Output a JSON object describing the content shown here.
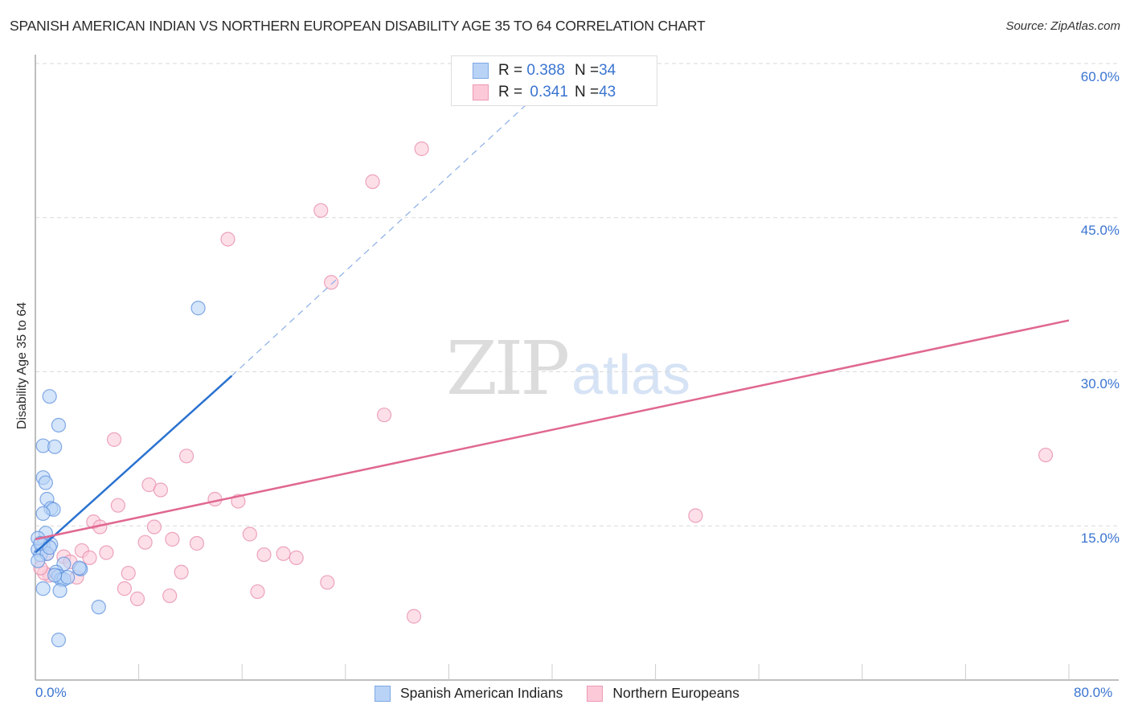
{
  "header": {
    "title": "SPANISH AMERICAN INDIAN VS NORTHERN EUROPEAN DISABILITY AGE 35 TO 64 CORRELATION CHART",
    "source": "Source: ZipAtlas.com"
  },
  "watermark": {
    "zip": "ZIP",
    "atlas": "atlas"
  },
  "axes": {
    "ylabel": "Disability Age 35 to 64",
    "y_ticks": [
      "60.0%",
      "45.0%",
      "30.0%",
      "15.0%"
    ],
    "x_ticks": [
      "0.0%",
      "80.0%"
    ]
  },
  "legend_stats": {
    "rows": [
      {
        "r_label": "R = ",
        "r_value": "0.388",
        "n_label": "N = ",
        "n_value": "34"
      },
      {
        "r_label": "R = ",
        "r_value": "0.341",
        "n_label": "N = ",
        "n_value": "43"
      }
    ]
  },
  "bottom_legend": {
    "items": [
      {
        "label": "Spanish American Indians"
      },
      {
        "label": "Northern Europeans"
      }
    ]
  },
  "colors": {
    "blue_fill": "#b9d3f6",
    "blue_stroke": "#5b8fdc",
    "blue_line": "#2a72d0",
    "pink_fill": "#fcc9d8",
    "pink_stroke": "#e58aa8",
    "pink_line": "#e06890",
    "tick_text": "#3a74d0",
    "grid": "#d9d9d9"
  },
  "chart_data": {
    "type": "scatter",
    "title": "SPANISH AMERICAN INDIAN VS NORTHERN EUROPEAN DISABILITY AGE 35 TO 64 CORRELATION CHART",
    "xlabel": "",
    "ylabel": "Disability Age 35 to 64",
    "xlim": [
      0,
      80
    ],
    "ylim": [
      0,
      62
    ],
    "x_tick_labels": [
      "0.0%",
      "80.0%"
    ],
    "y_tick_labels": [
      "15.0%",
      "30.0%",
      "45.0%",
      "60.0%"
    ],
    "grid": {
      "horizontal": true,
      "style": "dashed"
    },
    "legend_position": "bottom-center",
    "series": [
      {
        "name": "Spanish American Indians",
        "R": 0.388,
        "N": 34,
        "points": [
          [
            1.1,
            27.6
          ],
          [
            1.8,
            24.8
          ],
          [
            0.6,
            22.8
          ],
          [
            1.5,
            22.7
          ],
          [
            0.6,
            19.7
          ],
          [
            0.8,
            19.2
          ],
          [
            0.9,
            17.6
          ],
          [
            1.2,
            16.7
          ],
          [
            1.4,
            16.6
          ],
          [
            0.6,
            16.2
          ],
          [
            0.8,
            14.3
          ],
          [
            1.2,
            13.2
          ],
          [
            0.6,
            13.1
          ],
          [
            0.2,
            12.7
          ],
          [
            0.4,
            12.2
          ],
          [
            0.9,
            12.3
          ],
          [
            0.2,
            11.6
          ],
          [
            2.2,
            11.3
          ],
          [
            1.6,
            10.5
          ],
          [
            1.8,
            10.1
          ],
          [
            2.0,
            9.8
          ],
          [
            2.2,
            9.8
          ],
          [
            3.5,
            10.8
          ],
          [
            3.4,
            10.9
          ],
          [
            0.6,
            8.9
          ],
          [
            1.9,
            8.7
          ],
          [
            4.9,
            7.1
          ],
          [
            1.8,
            3.9
          ],
          [
            12.6,
            36.2
          ],
          [
            0.2,
            13.8
          ],
          [
            0.4,
            13.3
          ],
          [
            1.1,
            12.9
          ],
          [
            2.5,
            10.0
          ],
          [
            1.5,
            10.2
          ]
        ],
        "trend": {
          "x0": 0,
          "y0": 12.4,
          "x1": 15.2,
          "y1": 29.6,
          "dashed_to": [
            38.0,
            56.0
          ]
        }
      },
      {
        "name": "Northern Europeans",
        "R": 0.341,
        "N": 43,
        "points": [
          [
            29.9,
            51.7
          ],
          [
            26.1,
            48.5
          ],
          [
            22.1,
            45.7
          ],
          [
            14.9,
            42.9
          ],
          [
            22.9,
            38.7
          ],
          [
            27.0,
            25.8
          ],
          [
            6.1,
            23.4
          ],
          [
            11.7,
            21.8
          ],
          [
            78.2,
            21.9
          ],
          [
            8.8,
            19.0
          ],
          [
            9.7,
            18.5
          ],
          [
            13.9,
            17.6
          ],
          [
            15.7,
            17.4
          ],
          [
            6.4,
            17.0
          ],
          [
            51.1,
            16.0
          ],
          [
            4.5,
            15.4
          ],
          [
            5.0,
            14.9
          ],
          [
            9.2,
            14.9
          ],
          [
            16.6,
            14.2
          ],
          [
            8.5,
            13.4
          ],
          [
            10.6,
            13.7
          ],
          [
            12.5,
            13.3
          ],
          [
            5.5,
            12.4
          ],
          [
            3.6,
            12.6
          ],
          [
            17.7,
            12.2
          ],
          [
            19.2,
            12.3
          ],
          [
            20.2,
            11.9
          ],
          [
            4.2,
            11.9
          ],
          [
            2.2,
            12.0
          ],
          [
            2.7,
            11.5
          ],
          [
            0.9,
            12.3
          ],
          [
            11.3,
            10.5
          ],
          [
            7.2,
            10.4
          ],
          [
            3.2,
            10.0
          ],
          [
            1.1,
            10.2
          ],
          [
            0.7,
            10.4
          ],
          [
            22.6,
            9.5
          ],
          [
            6.9,
            8.9
          ],
          [
            17.2,
            8.6
          ],
          [
            10.4,
            8.2
          ],
          [
            7.9,
            7.9
          ],
          [
            29.3,
            6.2
          ],
          [
            0.4,
            10.9
          ]
        ],
        "trend": {
          "x0": 0,
          "y0": 13.7,
          "x1": 80,
          "y1": 35.0
        }
      }
    ]
  }
}
